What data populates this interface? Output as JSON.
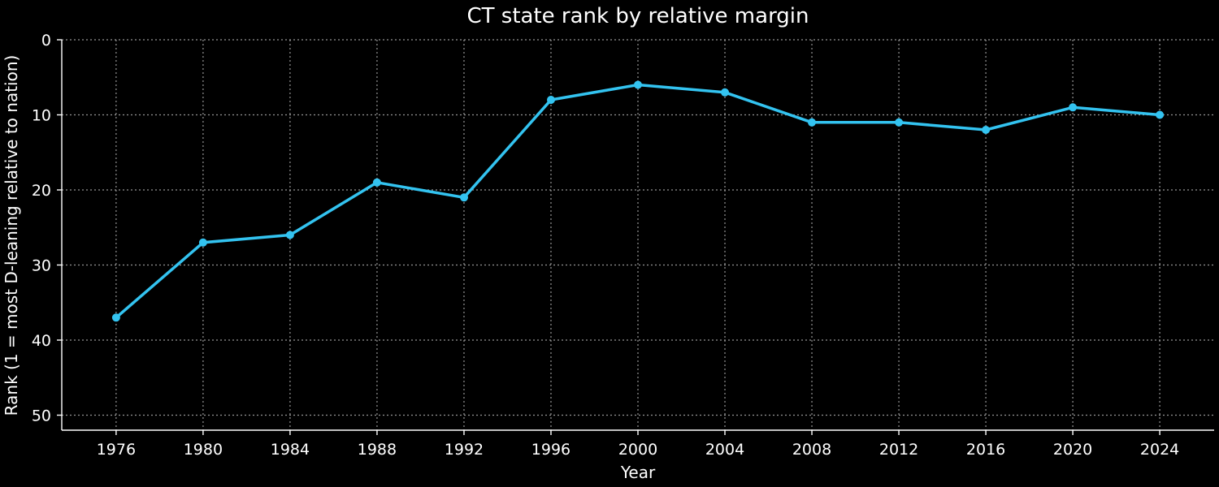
{
  "chart_data": {
    "type": "line",
    "title": "CT state rank by relative margin",
    "xlabel": "Year",
    "ylabel": "Rank (1 = most D-leaning relative to nation)",
    "x": [
      1976,
      1980,
      1984,
      1988,
      1992,
      1996,
      2000,
      2004,
      2008,
      2012,
      2016,
      2020,
      2024
    ],
    "series": [
      {
        "values": [
          37,
          27,
          26,
          19,
          21,
          8,
          6,
          7,
          11,
          11,
          12,
          9,
          10
        ],
        "color": "#33c3f0"
      }
    ],
    "xlim": [
      1973.5,
      2026.5
    ],
    "ylim": [
      52,
      0
    ],
    "y_inverted": true,
    "xticks": [
      1976,
      1980,
      1984,
      1988,
      1992,
      1996,
      2000,
      2004,
      2008,
      2012,
      2016,
      2020,
      2024
    ],
    "yticks": [
      0,
      10,
      20,
      30,
      40,
      50
    ],
    "grid": true,
    "background": "#000000",
    "text_color": "#ffffff",
    "grid_color": "#b0b0b0"
  }
}
